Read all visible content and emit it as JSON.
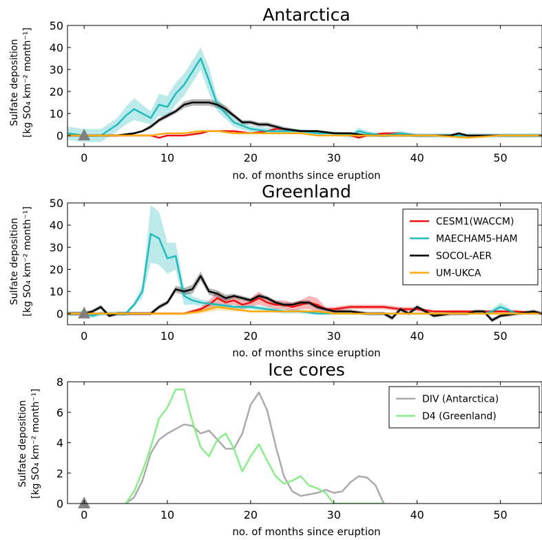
{
  "chart_data": [
    {
      "type": "line",
      "title": "Antarctica",
      "xlabel": "no. of months since eruption",
      "ylabel_line1": "Sulfate deposition",
      "ylabel_line2": "[kg SO₄ km⁻² month⁻¹]",
      "xlim": [
        -2,
        55
      ],
      "ylim": [
        -5,
        50
      ],
      "xticks": [
        0,
        10,
        20,
        30,
        40,
        50
      ],
      "yticks": [
        0,
        10,
        20,
        30,
        40,
        50
      ],
      "eruption_marker_x": 0,
      "series": [
        {
          "name": "CESM1(WACCM)",
          "color": "#ee1111",
          "x": [
            0,
            2,
            4,
            6,
            8,
            9,
            10,
            12,
            14,
            15,
            16,
            18,
            20,
            22,
            23,
            24,
            25,
            26,
            28,
            30,
            32,
            33,
            34,
            36,
            38,
            40,
            42,
            44,
            46,
            48,
            50,
            52,
            55
          ],
          "y": [
            0,
            0,
            0,
            0,
            0,
            -1,
            0,
            0,
            1,
            2,
            2,
            2,
            1,
            2,
            3,
            3,
            2,
            2,
            2,
            1,
            0,
            -1,
            0,
            1,
            1,
            0,
            0,
            0,
            0,
            0,
            0,
            0,
            0
          ]
        },
        {
          "name": "MAECHAM5-HAM",
          "color": "#22bbbb",
          "x": [
            -2,
            0,
            2,
            4,
            5,
            6,
            7,
            8,
            9,
            10,
            11,
            12,
            13,
            14,
            15,
            16,
            18,
            20,
            22,
            24,
            26,
            28,
            30,
            32,
            33,
            34,
            36,
            38,
            40,
            42,
            44,
            46,
            48,
            50,
            52,
            55
          ],
          "y": [
            1,
            0,
            0,
            5,
            9,
            12,
            10,
            8,
            14,
            13,
            19,
            23,
            29,
            35,
            25,
            14,
            6,
            3,
            2,
            2,
            2,
            1,
            1,
            0,
            2,
            1,
            0,
            1,
            0,
            0,
            0,
            0,
            0,
            0,
            0,
            0
          ],
          "band": [
            3,
            3,
            3,
            3,
            4,
            5,
            4,
            3,
            5,
            5,
            5,
            5,
            5,
            5,
            6,
            3,
            2,
            1.5,
            1.5,
            1,
            1,
            1,
            1,
            1,
            1.5,
            1,
            1,
            1,
            1,
            1,
            1,
            1,
            1,
            1,
            1,
            1
          ]
        },
        {
          "name": "SOCOL-AER",
          "color": "#000000",
          "x": [
            -2,
            0,
            2,
            4,
            6,
            7,
            8,
            9,
            10,
            11,
            12,
            13,
            14,
            15,
            16,
            17,
            18,
            19,
            20,
            21,
            22,
            23,
            24,
            26,
            28,
            30,
            32,
            34,
            36,
            38,
            40,
            42,
            44,
            45,
            46,
            48,
            50,
            52,
            55
          ],
          "y": [
            0,
            0,
            0,
            0,
            1,
            2,
            4,
            7,
            9,
            11,
            14,
            15,
            15,
            15,
            14,
            12,
            9,
            6,
            6,
            5,
            5,
            4,
            3,
            2,
            2,
            1,
            1,
            0,
            0,
            0,
            0,
            0,
            0,
            1,
            0,
            0,
            0,
            0,
            0
          ],
          "band": [
            0.5,
            0.5,
            0.5,
            0.5,
            0.5,
            0.5,
            1,
            1,
            1,
            1,
            1.5,
            1.5,
            1.5,
            1.5,
            1.5,
            1.5,
            1,
            1,
            1,
            1,
            1,
            1,
            1,
            0.5,
            0.5,
            0.5,
            0.5,
            0.5,
            0.5,
            0.5,
            0.5,
            0.5,
            0.5,
            0.5,
            0.5,
            0.5,
            0.5,
            0.5,
            0.5
          ]
        },
        {
          "name": "UM-UKCA",
          "color": "#ffaa11",
          "x": [
            -2,
            0,
            4,
            8,
            10,
            12,
            14,
            16,
            18,
            20,
            22,
            24,
            26,
            28,
            30,
            34,
            38,
            42,
            46,
            50,
            55
          ],
          "y": [
            0,
            0,
            0,
            0,
            1,
            1,
            2,
            2,
            1,
            1,
            1,
            1,
            1,
            0,
            0,
            0,
            0,
            0,
            -1,
            0,
            0
          ]
        }
      ]
    },
    {
      "type": "line",
      "title": "Greenland",
      "xlabel": "no. of months since eruption",
      "ylabel_line1": "Sulfate deposition",
      "ylabel_line2": "[kg SO₄ km⁻² month⁻¹]",
      "xlim": [
        -2,
        55
      ],
      "ylim": [
        -5,
        50
      ],
      "xticks": [
        0,
        10,
        20,
        30,
        40,
        50
      ],
      "yticks": [
        0,
        10,
        20,
        30,
        40,
        50
      ],
      "eruption_marker_x": 0,
      "legend_position": "upper-right",
      "series": [
        {
          "name": "CESM1(WACCM)",
          "color": "#ee1111",
          "x": [
            -2,
            0,
            4,
            8,
            10,
            12,
            14,
            15,
            16,
            17,
            18,
            19,
            20,
            21,
            22,
            23,
            24,
            25,
            26,
            27,
            28,
            29,
            30,
            32,
            34,
            36,
            38,
            40,
            42,
            44,
            46,
            48,
            50,
            52,
            55
          ],
          "y": [
            0,
            0,
            0,
            0,
            0,
            0,
            2,
            4,
            7,
            5,
            6,
            4,
            5,
            7,
            5,
            4,
            4,
            3,
            4,
            5,
            4,
            2,
            2,
            3,
            3,
            3,
            2,
            2,
            1,
            1,
            1,
            1,
            1,
            1,
            0
          ],
          "band": [
            0.5,
            0.5,
            0.5,
            0.5,
            0.5,
            0.5,
            1,
            2,
            3,
            2,
            2,
            2,
            2,
            3,
            2,
            2,
            2,
            2,
            2,
            3,
            3,
            1,
            1,
            1,
            1,
            1,
            1,
            1,
            0.5,
            0.5,
            0.5,
            0.5,
            0.5,
            0.5,
            0.5
          ]
        },
        {
          "name": "MAECHAM5-HAM",
          "color": "#22bbbb",
          "x": [
            -2,
            0,
            1,
            2,
            4,
            5,
            6,
            7,
            8,
            9,
            10,
            11,
            12,
            13,
            14,
            16,
            18,
            20,
            22,
            24,
            26,
            28,
            30,
            34,
            38,
            42,
            46,
            48,
            49,
            50,
            52,
            55
          ],
          "y": [
            0,
            0,
            -1,
            0,
            0,
            0,
            4,
            10,
            36,
            34,
            25,
            26,
            8,
            6,
            5,
            4,
            3,
            3,
            2,
            1,
            1,
            0,
            0,
            0,
            0,
            0,
            0,
            0,
            1,
            3,
            0,
            0
          ],
          "band": [
            1,
            1,
            1,
            1,
            1,
            1,
            1,
            3,
            13,
            12,
            7,
            6,
            4,
            2,
            1.5,
            1,
            1,
            1,
            1,
            1,
            1,
            0.5,
            0.5,
            0.5,
            0.5,
            0.5,
            0.5,
            0.5,
            1,
            2,
            0.5,
            0.5
          ]
        },
        {
          "name": "SOCOL-AER",
          "color": "#000000",
          "x": [
            -2,
            0,
            1,
            2,
            3,
            4,
            6,
            8,
            9,
            10,
            11,
            12,
            13,
            14,
            15,
            16,
            17,
            18,
            19,
            20,
            21,
            22,
            23,
            24,
            25,
            26,
            27,
            28,
            30,
            32,
            34,
            36,
            37,
            38,
            39,
            40,
            41,
            42,
            44,
            46,
            47,
            48,
            49,
            50,
            52,
            54,
            55
          ],
          "y": [
            0,
            0,
            1,
            3,
            -1,
            0,
            0,
            0,
            3,
            5,
            11,
            10,
            11,
            17,
            10,
            9,
            7,
            8,
            7,
            6,
            8,
            7,
            5,
            4,
            4,
            5,
            5,
            3,
            1,
            1,
            0,
            0,
            -2,
            2,
            0,
            3,
            1,
            -1,
            0,
            0,
            1,
            1,
            -3,
            -1,
            0,
            1,
            0
          ],
          "band": [
            0.8,
            0.8,
            0.8,
            1,
            0.8,
            0.8,
            0.8,
            0.8,
            1,
            1,
            1.5,
            1.5,
            2,
            2,
            1.5,
            1.5,
            1.5,
            1,
            1,
            1,
            1,
            1,
            1,
            1,
            1,
            1,
            1,
            1,
            0.8,
            0.8,
            0.8,
            0.8,
            1,
            1,
            0.8,
            1,
            0.8,
            0.8,
            0.8,
            0.8,
            0.8,
            0.8,
            1,
            0.8,
            0.8,
            0.8,
            0.8
          ]
        },
        {
          "name": "UM-UKCA",
          "color": "#ffaa11",
          "x": [
            -2,
            0,
            4,
            8,
            10,
            12,
            14,
            16,
            18,
            20,
            22,
            24,
            26,
            28,
            30,
            34,
            38,
            42,
            46,
            50,
            55
          ],
          "y": [
            0,
            0,
            0,
            0,
            0,
            0,
            1,
            3,
            2,
            1,
            1,
            1,
            1,
            1,
            0,
            0,
            0,
            0,
            0,
            0,
            0
          ],
          "band": [
            0.5,
            0.5,
            0.5,
            0.5,
            0.5,
            0.5,
            1,
            1.5,
            1,
            0.5,
            0.5,
            0.5,
            0.5,
            0.5,
            0.5,
            0.5,
            0.5,
            0.5,
            0.5,
            0.5,
            0.5
          ]
        }
      ],
      "legend": [
        "CESM1(WACCM)",
        "MAECHAM5-HAM",
        "SOCOL-AER",
        "UM-UKCA"
      ]
    },
    {
      "type": "line",
      "title": "Ice cores",
      "xlabel": "no. of months since eruption",
      "ylabel_line1": "Sulfate deposition",
      "ylabel_line2": "[kg SO₄ km⁻² month⁻¹]",
      "xlim": [
        -2,
        55
      ],
      "ylim": [
        0,
        8
      ],
      "xticks": [
        0,
        10,
        20,
        30,
        40,
        50
      ],
      "yticks": [
        0,
        2,
        4,
        6,
        8
      ],
      "eruption_marker_x": 0,
      "legend_position": "upper-right",
      "series": [
        {
          "name": "DIV (Antarctica)",
          "color": "#aaaaaa",
          "x": [
            5,
            6,
            7,
            8,
            9,
            10,
            11,
            12,
            13,
            14,
            15,
            16,
            17,
            18,
            19,
            20,
            21,
            22,
            23,
            24,
            25,
            26,
            27,
            28,
            29,
            30,
            31,
            32,
            33,
            34,
            35,
            36
          ],
          "y": [
            0,
            0.4,
            1.5,
            3.3,
            4.2,
            4.6,
            4.9,
            5.2,
            5.1,
            4.6,
            4.8,
            4.2,
            3.6,
            3.6,
            4.6,
            6.5,
            7.3,
            6.1,
            3.8,
            1.8,
            0.8,
            0.5,
            0.6,
            0.7,
            0.9,
            0.7,
            0.8,
            1.4,
            1.8,
            1.7,
            1.2,
            0
          ]
        },
        {
          "name": "D4 (Greenland)",
          "color": "#88ee88",
          "x": [
            5,
            6,
            7,
            8,
            9,
            10,
            11,
            12,
            13,
            14,
            15,
            16,
            17,
            18,
            19,
            20,
            21,
            22,
            23,
            24,
            25,
            26,
            27,
            28,
            29,
            30,
            31,
            32,
            33,
            34,
            35,
            36
          ],
          "y": [
            0,
            0.8,
            2.1,
            3.7,
            5.6,
            6.3,
            7.5,
            7.5,
            5.4,
            3.7,
            3.1,
            4.2,
            4.6,
            3.6,
            2.1,
            3.1,
            3.9,
            2.8,
            1.8,
            1.3,
            1.5,
            1.8,
            1.2,
            1.0,
            0.7,
            0,
            0,
            0,
            0,
            0,
            0,
            0
          ]
        }
      ],
      "legend": [
        "DIV (Antarctica)",
        "D4 (Greenland)"
      ]
    }
  ]
}
